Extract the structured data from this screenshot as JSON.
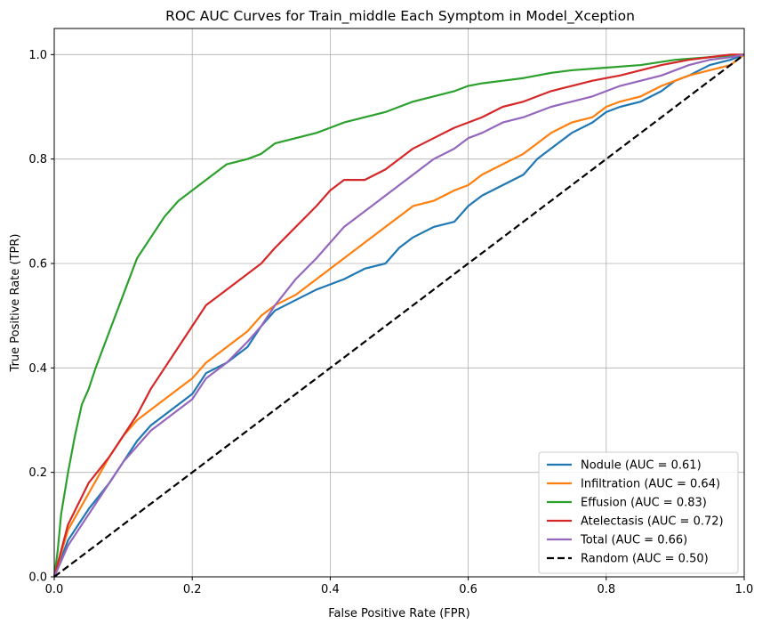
{
  "chart_data": {
    "type": "line",
    "title": "ROC AUC Curves for Train_middle Each Symptom in Model_Xception",
    "xlabel": "False Positive Rate (FPR)",
    "ylabel": "True Positive Rate (TPR)",
    "xlim": [
      0,
      1
    ],
    "ylim": [
      0,
      1.05
    ],
    "xticks": [
      "0.0",
      "0.2",
      "0.4",
      "0.6",
      "0.8",
      "1.0"
    ],
    "yticks": [
      "0.0",
      "0.2",
      "0.4",
      "0.6",
      "0.8",
      "1.0"
    ],
    "grid": true,
    "legend_position": "lower-right",
    "series": [
      {
        "name": "Nodule (AUC = 0.61)",
        "color": "#1f77b4",
        "dash": "solid",
        "x": [
          0,
          0.02,
          0.05,
          0.08,
          0.1,
          0.12,
          0.14,
          0.16,
          0.18,
          0.2,
          0.22,
          0.25,
          0.28,
          0.3,
          0.32,
          0.35,
          0.38,
          0.4,
          0.42,
          0.45,
          0.48,
          0.5,
          0.52,
          0.55,
          0.58,
          0.6,
          0.62,
          0.65,
          0.68,
          0.7,
          0.72,
          0.75,
          0.78,
          0.8,
          0.82,
          0.85,
          0.88,
          0.9,
          0.92,
          0.95,
          0.98,
          1.0
        ],
        "y": [
          0,
          0.07,
          0.13,
          0.18,
          0.22,
          0.26,
          0.29,
          0.31,
          0.33,
          0.35,
          0.39,
          0.41,
          0.44,
          0.48,
          0.51,
          0.53,
          0.55,
          0.56,
          0.57,
          0.59,
          0.6,
          0.63,
          0.65,
          0.67,
          0.68,
          0.71,
          0.73,
          0.75,
          0.77,
          0.8,
          0.82,
          0.85,
          0.87,
          0.89,
          0.9,
          0.91,
          0.93,
          0.95,
          0.96,
          0.98,
          0.99,
          1.0
        ]
      },
      {
        "name": "Infiltration (AUC = 0.64)",
        "color": "#ff7f0e",
        "dash": "solid",
        "x": [
          0,
          0.02,
          0.05,
          0.08,
          0.1,
          0.12,
          0.14,
          0.16,
          0.18,
          0.2,
          0.22,
          0.25,
          0.28,
          0.3,
          0.32,
          0.35,
          0.38,
          0.4,
          0.42,
          0.45,
          0.48,
          0.5,
          0.52,
          0.55,
          0.58,
          0.6,
          0.62,
          0.65,
          0.68,
          0.7,
          0.72,
          0.75,
          0.78,
          0.8,
          0.82,
          0.85,
          0.88,
          0.9,
          0.92,
          0.95,
          0.98,
          1.0
        ],
        "y": [
          0,
          0.09,
          0.16,
          0.23,
          0.27,
          0.3,
          0.32,
          0.34,
          0.36,
          0.38,
          0.41,
          0.44,
          0.47,
          0.5,
          0.52,
          0.54,
          0.57,
          0.59,
          0.61,
          0.64,
          0.67,
          0.69,
          0.71,
          0.72,
          0.74,
          0.75,
          0.77,
          0.79,
          0.81,
          0.83,
          0.85,
          0.87,
          0.88,
          0.9,
          0.91,
          0.92,
          0.94,
          0.95,
          0.96,
          0.97,
          0.98,
          1.0
        ]
      },
      {
        "name": "Effusion (AUC = 0.83)",
        "color": "#2ca02c",
        "dash": "solid",
        "x": [
          0,
          0.005,
          0.01,
          0.02,
          0.03,
          0.04,
          0.05,
          0.06,
          0.08,
          0.1,
          0.12,
          0.14,
          0.16,
          0.18,
          0.2,
          0.22,
          0.25,
          0.28,
          0.3,
          0.32,
          0.35,
          0.38,
          0.4,
          0.42,
          0.45,
          0.48,
          0.5,
          0.52,
          0.55,
          0.58,
          0.6,
          0.62,
          0.65,
          0.68,
          0.7,
          0.72,
          0.75,
          0.8,
          0.85,
          0.9,
          0.95,
          1.0
        ],
        "y": [
          0,
          0.05,
          0.12,
          0.2,
          0.27,
          0.33,
          0.36,
          0.4,
          0.47,
          0.54,
          0.61,
          0.65,
          0.69,
          0.72,
          0.74,
          0.76,
          0.79,
          0.8,
          0.81,
          0.83,
          0.84,
          0.85,
          0.86,
          0.87,
          0.88,
          0.89,
          0.9,
          0.91,
          0.92,
          0.93,
          0.94,
          0.945,
          0.95,
          0.955,
          0.96,
          0.965,
          0.97,
          0.975,
          0.98,
          0.99,
          0.995,
          1.0
        ]
      },
      {
        "name": "Atelectasis (AUC = 0.72)",
        "color": "#d62728",
        "dash": "solid",
        "x": [
          0,
          0.02,
          0.05,
          0.08,
          0.1,
          0.12,
          0.14,
          0.16,
          0.18,
          0.2,
          0.22,
          0.25,
          0.28,
          0.3,
          0.32,
          0.35,
          0.38,
          0.4,
          0.42,
          0.45,
          0.48,
          0.5,
          0.52,
          0.55,
          0.58,
          0.6,
          0.62,
          0.65,
          0.68,
          0.7,
          0.72,
          0.75,
          0.78,
          0.8,
          0.82,
          0.85,
          0.88,
          0.9,
          0.92,
          0.95,
          0.98,
          1.0
        ],
        "y": [
          0,
          0.1,
          0.18,
          0.23,
          0.27,
          0.31,
          0.36,
          0.4,
          0.44,
          0.48,
          0.52,
          0.55,
          0.58,
          0.6,
          0.63,
          0.67,
          0.71,
          0.74,
          0.76,
          0.76,
          0.78,
          0.8,
          0.82,
          0.84,
          0.86,
          0.87,
          0.88,
          0.9,
          0.91,
          0.92,
          0.93,
          0.94,
          0.95,
          0.955,
          0.96,
          0.97,
          0.98,
          0.985,
          0.99,
          0.995,
          1.0,
          1.0
        ]
      },
      {
        "name": "Total (AUC = 0.66)",
        "color": "#9467bd",
        "dash": "solid",
        "x": [
          0,
          0.02,
          0.05,
          0.08,
          0.1,
          0.12,
          0.14,
          0.16,
          0.18,
          0.2,
          0.22,
          0.25,
          0.28,
          0.3,
          0.32,
          0.35,
          0.38,
          0.4,
          0.42,
          0.45,
          0.48,
          0.5,
          0.52,
          0.55,
          0.58,
          0.6,
          0.62,
          0.65,
          0.68,
          0.7,
          0.72,
          0.75,
          0.78,
          0.8,
          0.82,
          0.85,
          0.88,
          0.9,
          0.92,
          0.95,
          0.98,
          1.0
        ],
        "y": [
          0,
          0.06,
          0.12,
          0.18,
          0.22,
          0.25,
          0.28,
          0.3,
          0.32,
          0.34,
          0.38,
          0.41,
          0.45,
          0.48,
          0.52,
          0.57,
          0.61,
          0.64,
          0.67,
          0.7,
          0.73,
          0.75,
          0.77,
          0.8,
          0.82,
          0.84,
          0.85,
          0.87,
          0.88,
          0.89,
          0.9,
          0.91,
          0.92,
          0.93,
          0.94,
          0.95,
          0.96,
          0.97,
          0.98,
          0.99,
          0.995,
          1.0
        ]
      },
      {
        "name": "Random (AUC = 0.50)",
        "color": "#000000",
        "dash": "dashed",
        "x": [
          0,
          1
        ],
        "y": [
          0,
          1
        ]
      }
    ]
  }
}
